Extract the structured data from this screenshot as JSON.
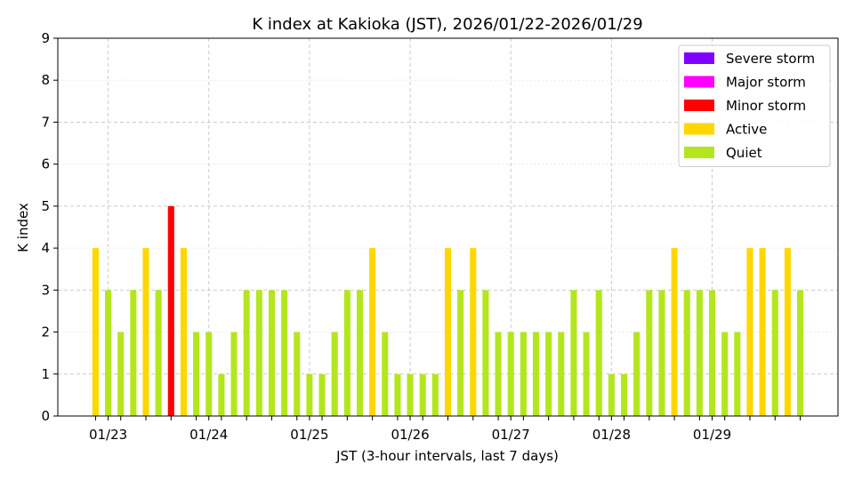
{
  "chart_data": {
    "type": "bar",
    "title": "K index at Kakioka (JST), 2026/01/22-2026/01/29",
    "xlabel": "JST (3-hour intervals, last 7 days)",
    "ylabel": "K index",
    "ylim": [
      0,
      9
    ],
    "yticks": [
      0,
      1,
      2,
      3,
      4,
      5,
      6,
      7,
      8,
      9
    ],
    "x_tick_labels": [
      "01/23",
      "01/24",
      "01/25",
      "01/26",
      "01/27",
      "01/28",
      "01/29"
    ],
    "x_tick_positions": [
      1,
      9,
      17,
      25,
      33,
      41,
      49
    ],
    "x_range": [
      -3,
      59
    ],
    "grid": true,
    "legend_position": "top-right",
    "legend": [
      {
        "label": "Severe storm",
        "color": "#7f00ff"
      },
      {
        "label": "Major storm",
        "color": "#ff00ff"
      },
      {
        "label": "Minor storm",
        "color": "#ff0000"
      },
      {
        "label": "Active",
        "color": "#ffd700"
      },
      {
        "label": "Quiet",
        "color": "#b4e61e"
      }
    ],
    "values": [
      4,
      3,
      2,
      3,
      4,
      3,
      5,
      4,
      2,
      2,
      1,
      2,
      3,
      3,
      3,
      3,
      2,
      1,
      1,
      2,
      3,
      3,
      4,
      2,
      1,
      1,
      1,
      1,
      4,
      3,
      4,
      3,
      2,
      2,
      2,
      2,
      2,
      2,
      3,
      2,
      3,
      1,
      1,
      2,
      3,
      3,
      4,
      3,
      3,
      3,
      2,
      2,
      4,
      4,
      3,
      4,
      3
    ]
  }
}
